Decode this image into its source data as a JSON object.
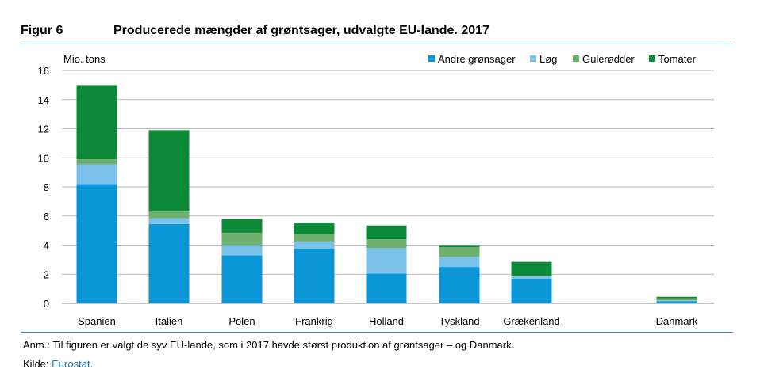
{
  "figure": {
    "label": "Figur 6",
    "title": "Producerede mængder af grøntsager, udvalgte EU-lande. 2017"
  },
  "note": "Anm.: Til figuren er valgt de syv EU-lande, som i 2017 havde størst produktion af grøntsager – og Danmark.",
  "source": {
    "prefix": "Kilde: ",
    "link_text": "Eurostat."
  },
  "colors": {
    "andre": "#0a96d6",
    "log": "#7cc1ea",
    "gulerodder": "#6fb06f",
    "tomater": "#0c8a3a",
    "grid": "#b8b8b8",
    "rule": "#2a8fc7"
  },
  "chart_data": {
    "type": "bar",
    "stacked": true,
    "ylabel": "Mio. tons",
    "ylim": [
      0,
      16
    ],
    "yticks": [
      0,
      2,
      4,
      6,
      8,
      10,
      12,
      14,
      16
    ],
    "grid": true,
    "legend_position": "top-right",
    "categories": [
      "Spanien",
      "Italien",
      "Polen",
      "Frankrig",
      "Holland",
      "Tyskland",
      "Grækenland",
      "Danmark"
    ],
    "series": [
      {
        "name": "Andre grønsager",
        "color_key": "andre",
        "values": [
          8.2,
          5.45,
          3.3,
          3.75,
          2.05,
          2.5,
          1.7,
          0.15
        ]
      },
      {
        "name": "Løg",
        "color_key": "log",
        "values": [
          1.35,
          0.4,
          0.7,
          0.5,
          1.75,
          0.7,
          0.15,
          0.05
        ]
      },
      {
        "name": "Gulerødder",
        "color_key": "gulerodder",
        "values": [
          0.35,
          0.45,
          0.85,
          0.5,
          0.6,
          0.65,
          0.05,
          0.15
        ]
      },
      {
        "name": "Tomater",
        "color_key": "tomater",
        "values": [
          5.1,
          5.6,
          0.95,
          0.8,
          0.95,
          0.15,
          0.95,
          0.1
        ]
      }
    ]
  }
}
